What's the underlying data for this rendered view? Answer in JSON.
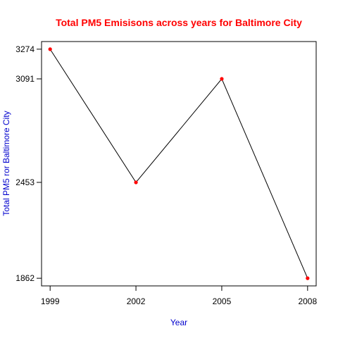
{
  "chart_data": {
    "type": "line",
    "title": "Total PM5 Emisisons across years for Baltimore City",
    "xlabel": "Year",
    "ylabel": "Total PM5 ror Baltimore City",
    "x": [
      1999,
      2002,
      2005,
      2008
    ],
    "x_tick_labels": [
      "1999",
      "2002",
      "2005",
      "2008"
    ],
    "y_tick_values": [
      3274,
      3091,
      2453,
      1862
    ],
    "y_tick_labels": [
      "3274",
      "3091",
      "2453",
      "1862"
    ],
    "series": [
      {
        "values": [
          3274,
          2453,
          3091,
          1862
        ]
      }
    ],
    "xlim": [
      1998.7,
      2008.3
    ],
    "ylim": [
      1814.9,
      3321.1
    ],
    "grid": false,
    "colors": {
      "title": "#ff0000",
      "axis_labels": "#0000cd",
      "line": "#000000",
      "points": "#ff0000"
    }
  }
}
